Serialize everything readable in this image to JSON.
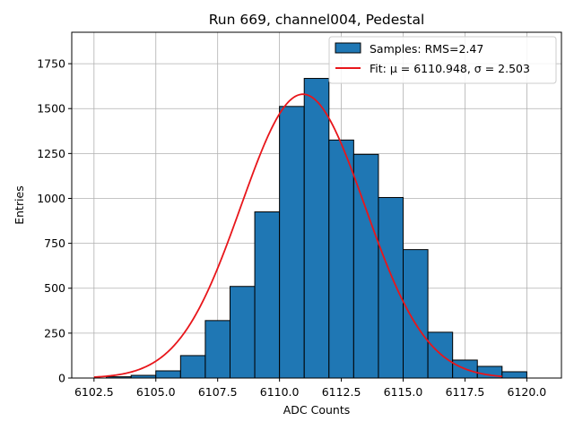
{
  "colors": {
    "bar_fill": "#1f77b4",
    "bar_edge": "#000000",
    "fit_line": "#e8161b",
    "grid": "#b0b0b0"
  },
  "chart_data": {
    "type": "bar",
    "title": "Run 669, channel004, Pedestal",
    "xlabel": "ADC Counts",
    "ylabel": "Entries",
    "xlim": [
      6101.6,
      6121.4
    ],
    "ylim": [
      0,
      1925
    ],
    "grid": true,
    "legend_position": "top-right",
    "xticks": [
      "6102.5",
      "6105.0",
      "6107.5",
      "6110.0",
      "6112.5",
      "6115.0",
      "6117.5",
      "6120.0"
    ],
    "yticks": [
      "0",
      "250",
      "500",
      "750",
      "1000",
      "1250",
      "1500",
      "1750"
    ],
    "histogram": {
      "name": "Samples: RMS=2.47",
      "bin_width": 1,
      "bins": [
        {
          "left": 6103,
          "count": 7
        },
        {
          "left": 6104,
          "count": 15
        },
        {
          "left": 6105,
          "count": 40
        },
        {
          "left": 6106,
          "count": 125
        },
        {
          "left": 6107,
          "count": 320
        },
        {
          "left": 6108,
          "count": 510
        },
        {
          "left": 6109,
          "count": 925
        },
        {
          "left": 6110,
          "count": 1512
        },
        {
          "left": 6111,
          "count": 1668
        },
        {
          "left": 6112,
          "count": 1325
        },
        {
          "left": 6113,
          "count": 1245
        },
        {
          "left": 6114,
          "count": 1005
        },
        {
          "left": 6115,
          "count": 715
        },
        {
          "left": 6116,
          "count": 255
        },
        {
          "left": 6117,
          "count": 100
        },
        {
          "left": 6118,
          "count": 65
        },
        {
          "left": 6119,
          "count": 35
        }
      ]
    },
    "fit": {
      "name": "Fit: μ = 6110.948, σ = 2.503",
      "mu": 6110.948,
      "sigma": 2.503,
      "amplitude": 1580,
      "x_range": [
        6102.5,
        6119.0
      ]
    }
  }
}
